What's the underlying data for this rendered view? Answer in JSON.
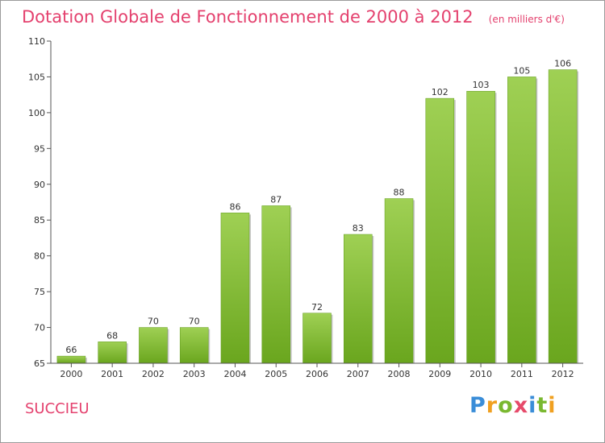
{
  "chart_data": {
    "type": "bar",
    "title": "Dotation Globale de Fonctionnement de 2000 à 2012",
    "unit_label": "(en milliers d'€)",
    "categories": [
      "2000",
      "2001",
      "2002",
      "2003",
      "2004",
      "2005",
      "2006",
      "2007",
      "2008",
      "2009",
      "2010",
      "2011",
      "2012"
    ],
    "values": [
      66,
      68,
      70,
      70,
      86,
      87,
      72,
      83,
      88,
      102,
      103,
      105,
      106
    ],
    "ylim": [
      65,
      110
    ],
    "yticks": [
      65,
      70,
      75,
      80,
      85,
      90,
      95,
      100,
      105,
      110
    ],
    "xlabel": "",
    "ylabel": "",
    "grid": false,
    "bar_color": "#8cc63f"
  },
  "commune": "SUCCIEU",
  "logo": {
    "text": "Proxiti",
    "letters": [
      "P",
      "r",
      "o",
      "x",
      "i",
      "t",
      "i"
    ],
    "colors": [
      "#3a8dd8",
      "#f0a020",
      "#7ab830",
      "#e64a6a",
      "#3a8dd8",
      "#7ab830",
      "#f0a020"
    ]
  },
  "colors": {
    "title": "#e4416e",
    "axis": "#555555",
    "text": "#333333"
  }
}
